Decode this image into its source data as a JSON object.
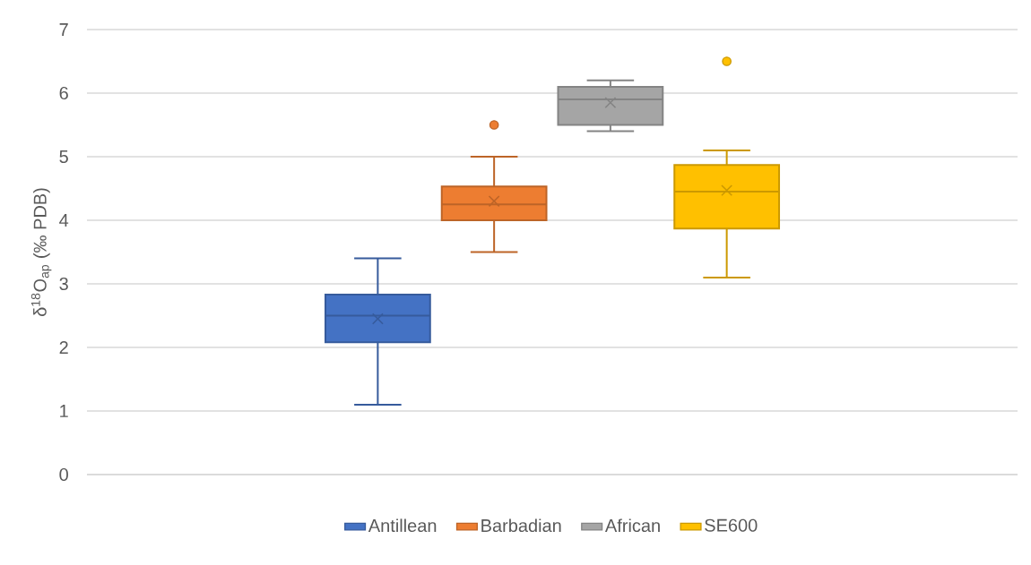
{
  "chart_data": {
    "type": "box",
    "ylabel": "δ$^{18}$O$_{ap}$ (‰ PDB)",
    "categories": [
      null
    ],
    "ylim": [
      0,
      7
    ],
    "yticks": [
      0,
      1,
      2,
      3,
      4,
      5,
      6,
      7
    ],
    "grid": "y",
    "legend": "bottom",
    "series": [
      {
        "name": "Antillean",
        "color": "#4472c4",
        "boxes": [
          {
            "low": 1.1,
            "q1": 2.08,
            "median": 2.5,
            "q3": 2.83,
            "high": 3.4,
            "mean": 2.45
          }
        ]
      },
      {
        "name": "Barbadian",
        "color": "#ed7d31",
        "boxes": [
          {
            "low": 3.5,
            "q1": 4.0,
            "median": 4.25,
            "q3": 4.53,
            "high": 5.0,
            "mean": 4.3,
            "outliers": [
              5.5
            ]
          }
        ]
      },
      {
        "name": "African",
        "color": "#a5a5a5",
        "boxes": [
          {
            "low": 5.4,
            "q1": 5.5,
            "median": 5.9,
            "q3": 6.1,
            "high": 6.2,
            "mean": 5.85
          }
        ]
      },
      {
        "name": "SE600",
        "color": "#ffc000",
        "boxes": [
          {
            "low": 3.1,
            "q1": 3.87,
            "median": 4.45,
            "q3": 4.87,
            "high": 5.1,
            "mean": 4.47,
            "outliers": [
              6.5
            ]
          }
        ]
      }
    ]
  }
}
